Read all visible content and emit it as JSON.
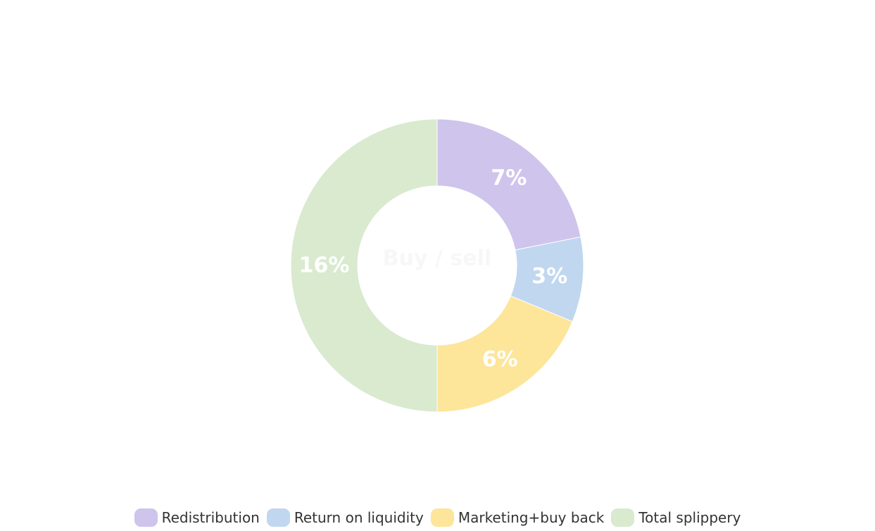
{
  "chart_data": {
    "type": "pie",
    "variant": "donut",
    "title": "",
    "center_label": "Buy / sell",
    "legend_position": "bottom",
    "categories": [
      "Redistribution",
      "Return on liquidity",
      "Marketing+buy back",
      "Total splippery"
    ],
    "values": [
      7,
      3,
      6,
      16
    ],
    "labels": [
      "7%",
      "3%",
      "6%",
      "16%"
    ],
    "colors": [
      "#cfc4ec",
      "#c0d7ef",
      "#fde59a",
      "#d9eacf"
    ]
  }
}
